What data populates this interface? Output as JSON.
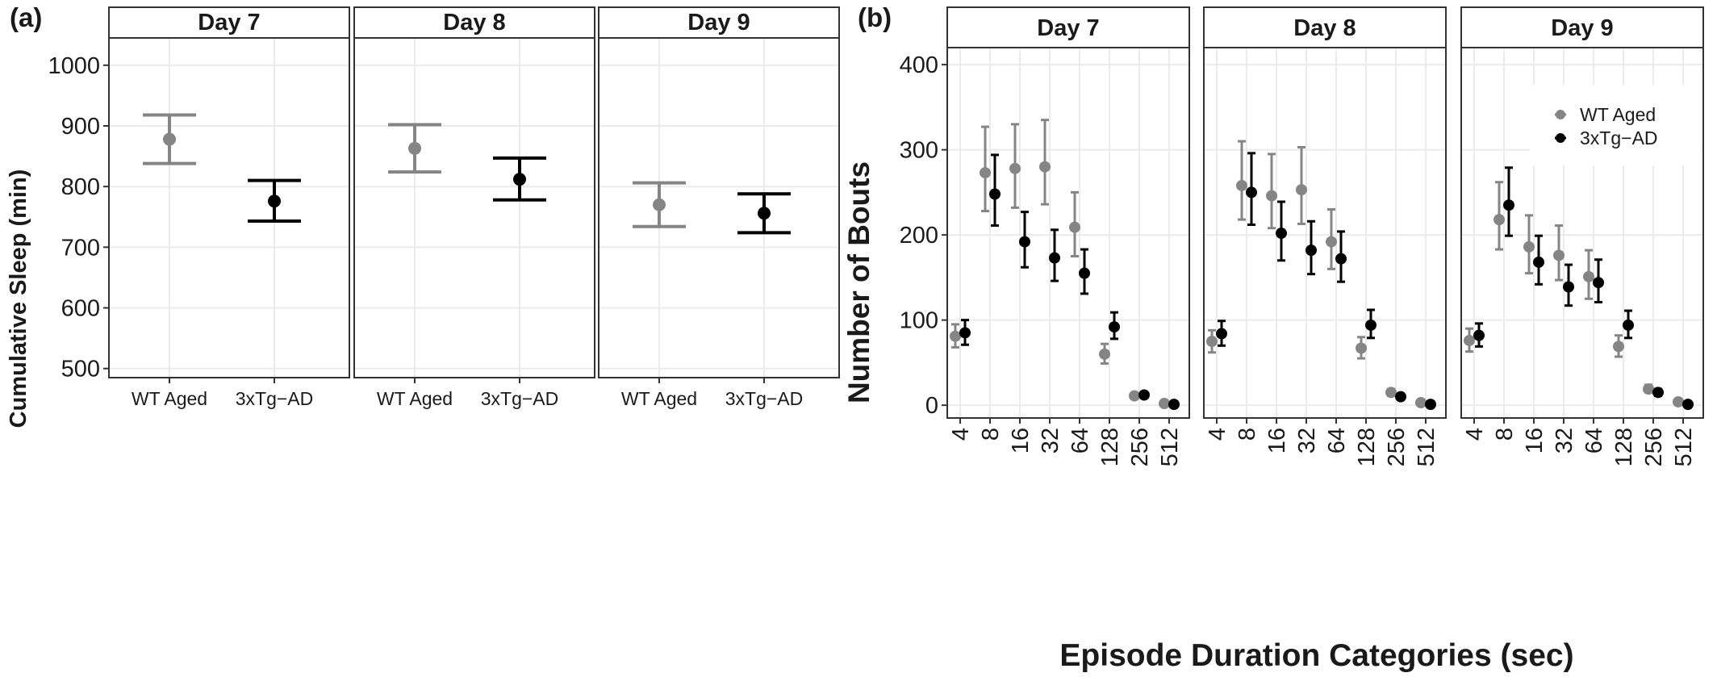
{
  "panel_labels": {
    "a": "(a)",
    "b": "(b)"
  },
  "chart_data": [
    {
      "type": "scatter",
      "panel": "(a)",
      "facets": [
        "Day 7",
        "Day 8",
        "Day 9"
      ],
      "categories": [
        "WT Aged",
        "3xTg−AD"
      ],
      "ylabel": "Cumulative Sleep (min)",
      "xlabel": "",
      "ylim": [
        485,
        1045
      ],
      "yticks": [
        500,
        600,
        700,
        800,
        900,
        1000
      ],
      "grid": true,
      "colors": {
        "WT Aged": "#858585",
        "3xTg−AD": "#000000"
      },
      "points": [
        {
          "facet": "Day 7",
          "group": "WT Aged",
          "mean": 878,
          "lower": 838,
          "upper": 918
        },
        {
          "facet": "Day 7",
          "group": "3xTg−AD",
          "mean": 776,
          "lower": 743,
          "upper": 810
        },
        {
          "facet": "Day 8",
          "group": "WT Aged",
          "mean": 863,
          "lower": 824,
          "upper": 902
        },
        {
          "facet": "Day 8",
          "group": "3xTg−AD",
          "mean": 812,
          "lower": 778,
          "upper": 847
        },
        {
          "facet": "Day 9",
          "group": "WT Aged",
          "mean": 770,
          "lower": 734,
          "upper": 806
        },
        {
          "facet": "Day 9",
          "group": "3xTg−AD",
          "mean": 756,
          "lower": 724,
          "upper": 788
        }
      ]
    },
    {
      "type": "scatter",
      "panel": "(b)",
      "facets": [
        "Day 7",
        "Day 8",
        "Day 9"
      ],
      "categories": [
        "4",
        "8",
        "16",
        "32",
        "64",
        "128",
        "256",
        "512"
      ],
      "ylabel": "Number of Bouts",
      "xlabel": "Episode Duration Categories (sec)",
      "ylim": [
        -15,
        420
      ],
      "yticks": [
        0,
        100,
        200,
        300,
        400
      ],
      "grid": true,
      "legend_position": "top-right",
      "series": [
        {
          "name": "WT Aged",
          "color": "#858585",
          "values": {
            "Day 7": [
              {
                "mean": 81,
                "lower": 68,
                "upper": 95
              },
              {
                "mean": 273,
                "lower": 228,
                "upper": 327
              },
              {
                "mean": 278,
                "lower": 232,
                "upper": 330
              },
              {
                "mean": 280,
                "lower": 236,
                "upper": 335
              },
              {
                "mean": 209,
                "lower": 175,
                "upper": 250
              },
              {
                "mean": 60,
                "lower": 49,
                "upper": 72
              },
              {
                "mean": 11,
                "lower": 8,
                "upper": 14
              },
              {
                "mean": 2,
                "lower": 1,
                "upper": 3
              }
            ],
            "Day 8": [
              {
                "mean": 75,
                "lower": 62,
                "upper": 88
              },
              {
                "mean": 258,
                "lower": 218,
                "upper": 310
              },
              {
                "mean": 246,
                "lower": 208,
                "upper": 295
              },
              {
                "mean": 253,
                "lower": 213,
                "upper": 303
              },
              {
                "mean": 192,
                "lower": 160,
                "upper": 230
              },
              {
                "mean": 67,
                "lower": 55,
                "upper": 80
              },
              {
                "mean": 15,
                "lower": 11,
                "upper": 19
              },
              {
                "mean": 3,
                "lower": 1,
                "upper": 4
              }
            ],
            "Day 9": [
              {
                "mean": 76,
                "lower": 63,
                "upper": 90
              },
              {
                "mean": 218,
                "lower": 183,
                "upper": 262
              },
              {
                "mean": 186,
                "lower": 155,
                "upper": 223
              },
              {
                "mean": 176,
                "lower": 147,
                "upper": 211
              },
              {
                "mean": 151,
                "lower": 125,
                "upper": 182
              },
              {
                "mean": 69,
                "lower": 57,
                "upper": 82
              },
              {
                "mean": 19,
                "lower": 15,
                "upper": 24
              },
              {
                "mean": 4,
                "lower": 2,
                "upper": 5
              }
            ]
          }
        },
        {
          "name": "3xTg−AD",
          "color": "#000000",
          "values": {
            "Day 7": [
              {
                "mean": 85,
                "lower": 71,
                "upper": 100
              },
              {
                "mean": 248,
                "lower": 211,
                "upper": 294
              },
              {
                "mean": 192,
                "lower": 162,
                "upper": 227
              },
              {
                "mean": 173,
                "lower": 146,
                "upper": 206
              },
              {
                "mean": 155,
                "lower": 131,
                "upper": 183
              },
              {
                "mean": 92,
                "lower": 78,
                "upper": 109
              },
              {
                "mean": 12,
                "lower": 9,
                "upper": 15
              },
              {
                "mean": 1,
                "lower": 0,
                "upper": 2
              }
            ],
            "Day 8": [
              {
                "mean": 84,
                "lower": 70,
                "upper": 99
              },
              {
                "mean": 250,
                "lower": 212,
                "upper": 296
              },
              {
                "mean": 202,
                "lower": 170,
                "upper": 239
              },
              {
                "mean": 182,
                "lower": 154,
                "upper": 216
              },
              {
                "mean": 172,
                "lower": 145,
                "upper": 204
              },
              {
                "mean": 94,
                "lower": 79,
                "upper": 112
              },
              {
                "mean": 10,
                "lower": 7,
                "upper": 13
              },
              {
                "mean": 1,
                "lower": 0,
                "upper": 2
              }
            ],
            "Day 9": [
              {
                "mean": 82,
                "lower": 69,
                "upper": 96
              },
              {
                "mean": 235,
                "lower": 199,
                "upper": 279
              },
              {
                "mean": 168,
                "lower": 142,
                "upper": 199
              },
              {
                "mean": 139,
                "lower": 117,
                "upper": 165
              },
              {
                "mean": 144,
                "lower": 121,
                "upper": 171
              },
              {
                "mean": 94,
                "lower": 79,
                "upper": 111
              },
              {
                "mean": 15,
                "lower": 11,
                "upper": 19
              },
              {
                "mean": 1,
                "lower": 0,
                "upper": 2
              }
            ]
          }
        }
      ]
    }
  ]
}
